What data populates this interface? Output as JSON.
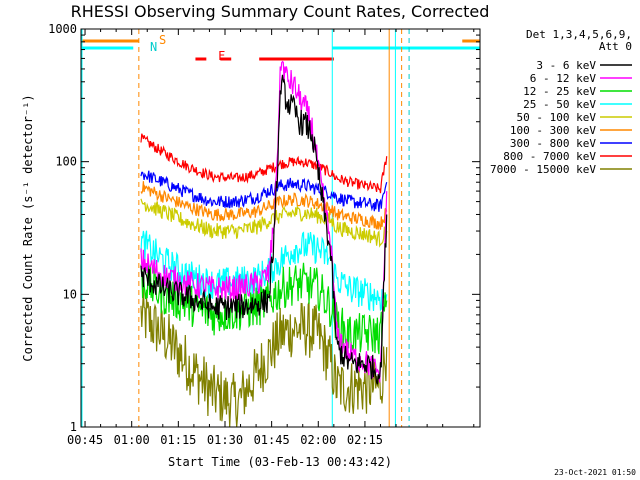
{
  "chart_data": {
    "type": "line",
    "title": "RHESSI Observing Summary Count Rates, Corrected",
    "xlabel": "Start Time (03-Feb-13 00:43:42)",
    "ylabel": "Corrected Count Rate (s⁻¹ detector⁻¹)",
    "yscale": "log",
    "ylim": [
      1,
      1000
    ],
    "xlim_minutes": [
      43.7,
      172
    ],
    "x_tick_labels": [
      "00:45",
      "01:00",
      "01:15",
      "01:30",
      "01:45",
      "02:00",
      "02:15"
    ],
    "x_tick_minutes": [
      45,
      60,
      75,
      90,
      105,
      120,
      135
    ],
    "y_tick_labels": [
      "1",
      "10",
      "100",
      "1000"
    ],
    "y_tick_values": [
      1,
      10,
      100,
      1000
    ],
    "legend_header": [
      "Det 1,3,4,5,6,9,",
      "Att 0"
    ],
    "footer": "23-Oct-2021 01:50",
    "annotations": {
      "saa_label": "S",
      "night_label": "N",
      "flare_label": "F"
    },
    "intervals": {
      "saa": [
        [
          43.7,
          62.3
        ],
        [
          166.3,
          172
        ]
      ],
      "night": [
        [
          43.7,
          60.5
        ],
        [
          124.5,
          172
        ]
      ],
      "flare": [
        [
          80.5,
          84
        ],
        [
          88.5,
          92
        ],
        [
          101,
          125
        ]
      ]
    },
    "vertical_markers": {
      "cyan_solid": [
        124.5,
        144.8
      ],
      "orange_dashed": [
        62.3,
        146.8
      ],
      "orange_solid": [
        142.8
      ],
      "dashed_end": [
        149.2
      ]
    },
    "series": [
      {
        "name": "3 - 6 keV",
        "color": "#000000",
        "x": [
          63,
          70,
          78,
          86,
          94,
          100,
          104,
          106,
          108,
          110,
          112,
          114,
          116,
          118,
          120,
          124,
          126,
          130,
          136,
          140,
          142
        ],
        "y": [
          14,
          11,
          9.5,
          8,
          8,
          8.5,
          9,
          30,
          400,
          280,
          250,
          200,
          190,
          160,
          80,
          20,
          4,
          3,
          3,
          2.5,
          40
        ]
      },
      {
        "name": "6 - 12 keV",
        "color": "#ff00ff",
        "x": [
          63,
          70,
          78,
          86,
          94,
          100,
          104,
          106,
          108,
          110,
          112,
          114,
          116,
          118,
          120,
          124,
          126,
          130,
          136,
          140,
          142
        ],
        "y": [
          18,
          14,
          12,
          11,
          11,
          12,
          14,
          40,
          580,
          420,
          380,
          300,
          250,
          180,
          90,
          24,
          5,
          3.5,
          3,
          2.5,
          60
        ]
      },
      {
        "name": "12 - 25 keV",
        "color": "#00dd00",
        "x": [
          63,
          70,
          78,
          86,
          94,
          100,
          104,
          108,
          112,
          116,
          120,
          124,
          126,
          130,
          136,
          140,
          142
        ],
        "y": [
          13,
          10,
          8.5,
          7,
          7.5,
          8,
          9,
          11,
          12,
          12,
          11,
          8,
          6,
          5,
          5,
          5,
          9
        ]
      },
      {
        "name": "25 - 50 keV",
        "color": "#00ffff",
        "x": [
          63,
          70,
          78,
          86,
          94,
          100,
          104,
          108,
          112,
          116,
          120,
          124,
          126,
          130,
          136,
          140,
          142
        ],
        "y": [
          25,
          18,
          14,
          12,
          12.5,
          13,
          15,
          18,
          22,
          23,
          22,
          18,
          13,
          11,
          10,
          9.5,
          10
        ]
      },
      {
        "name": "50 - 100 keV",
        "color": "#cccc00",
        "x": [
          63,
          70,
          78,
          86,
          94,
          100,
          104,
          108,
          112,
          116,
          120,
          124,
          126,
          130,
          136,
          140,
          142
        ],
        "y": [
          50,
          42,
          35,
          30,
          30,
          32,
          36,
          39,
          41,
          41,
          39,
          36,
          32,
          30,
          28,
          26,
          30
        ]
      },
      {
        "name": "100 - 300 keV",
        "color": "#ff8800",
        "x": [
          63,
          70,
          78,
          86,
          94,
          100,
          104,
          108,
          112,
          116,
          120,
          124,
          126,
          130,
          136,
          140,
          142
        ],
        "y": [
          65,
          55,
          46,
          40,
          40,
          42,
          46,
          50,
          52,
          51,
          48,
          44,
          40,
          38,
          36,
          34,
          42
        ]
      },
      {
        "name": "300 - 800 keV",
        "color": "#0000ff",
        "x": [
          63,
          70,
          78,
          86,
          94,
          100,
          104,
          108,
          112,
          116,
          120,
          124,
          126,
          130,
          136,
          140,
          142
        ],
        "y": [
          82,
          70,
          58,
          50,
          50,
          54,
          60,
          66,
          68,
          66,
          62,
          58,
          54,
          50,
          48,
          46,
          70
        ]
      },
      {
        "name": "800 - 7000 keV",
        "color": "#ff0000",
        "x": [
          63,
          70,
          78,
          86,
          94,
          100,
          104,
          108,
          112,
          116,
          120,
          124,
          126,
          130,
          136,
          140,
          142
        ],
        "y": [
          150,
          118,
          92,
          77,
          75,
          80,
          88,
          96,
          100,
          99,
          92,
          82,
          75,
          70,
          65,
          62,
          110
        ]
      },
      {
        "name": "7000 - 15000 keV",
        "color": "#808000",
        "x": [
          63,
          70,
          78,
          86,
          94,
          100,
          104,
          108,
          112,
          116,
          120,
          124,
          126,
          130,
          136,
          140,
          142
        ],
        "y": [
          7,
          5,
          3,
          1.8,
          1.5,
          2.5,
          3.5,
          5,
          5.5,
          5.5,
          5,
          3,
          2,
          2,
          2,
          2,
          4
        ]
      }
    ]
  }
}
